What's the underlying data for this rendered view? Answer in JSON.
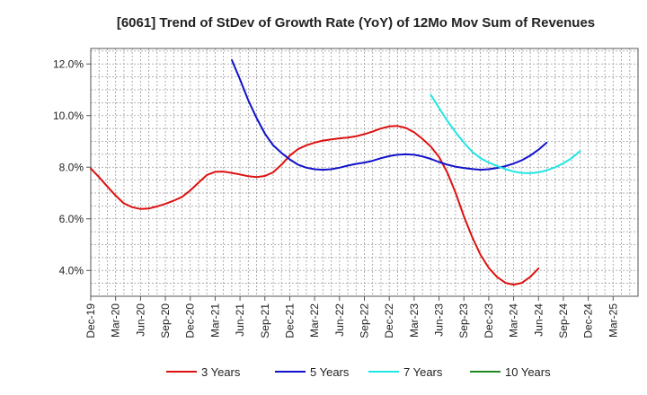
{
  "chart_data": {
    "type": "line",
    "title": "[6061]  Trend of StDev of Growth Rate (YoY) of 12Mo Mov Sum of Revenues",
    "xlabel": "",
    "ylabel": "",
    "ylim": [
      3.0,
      12.6
    ],
    "y_ticks": [
      {
        "value": 4.0,
        "label": "4.0%"
      },
      {
        "value": 6.0,
        "label": "6.0%"
      },
      {
        "value": 8.0,
        "label": "8.0%"
      },
      {
        "value": 10.0,
        "label": "10.0%"
      },
      {
        "value": 12.0,
        "label": "12.0%"
      }
    ],
    "x_range": [
      0,
      22
    ],
    "x_ticks": [
      {
        "index": 0,
        "label": "Dec-19"
      },
      {
        "index": 1,
        "label": "Mar-20"
      },
      {
        "index": 2,
        "label": "Jun-20"
      },
      {
        "index": 3,
        "label": "Sep-20"
      },
      {
        "index": 4,
        "label": "Dec-20"
      },
      {
        "index": 5,
        "label": "Mar-21"
      },
      {
        "index": 6,
        "label": "Jun-21"
      },
      {
        "index": 7,
        "label": "Sep-21"
      },
      {
        "index": 8,
        "label": "Dec-21"
      },
      {
        "index": 9,
        "label": "Mar-22"
      },
      {
        "index": 10,
        "label": "Jun-22"
      },
      {
        "index": 11,
        "label": "Sep-22"
      },
      {
        "index": 12,
        "label": "Dec-22"
      },
      {
        "index": 13,
        "label": "Mar-23"
      },
      {
        "index": 14,
        "label": "Jun-23"
      },
      {
        "index": 15,
        "label": "Sep-23"
      },
      {
        "index": 16,
        "label": "Dec-23"
      },
      {
        "index": 17,
        "label": "Mar-24"
      },
      {
        "index": 18,
        "label": "Jun-24"
      },
      {
        "index": 19,
        "label": "Sep-24"
      },
      {
        "index": 20,
        "label": "Dec-24"
      },
      {
        "index": 21,
        "label": "Mar-25"
      }
    ],
    "grid": true,
    "legend_position": "bottom",
    "series": [
      {
        "name": "3 Years",
        "color": "#dd1111",
        "points": [
          [
            0,
            7.95
          ],
          [
            0.33,
            7.62
          ],
          [
            0.67,
            7.25
          ],
          [
            1,
            6.9
          ],
          [
            1.33,
            6.6
          ],
          [
            1.67,
            6.45
          ],
          [
            2,
            6.38
          ],
          [
            2.33,
            6.4
          ],
          [
            2.67,
            6.48
          ],
          [
            3,
            6.58
          ],
          [
            3.33,
            6.7
          ],
          [
            3.67,
            6.85
          ],
          [
            4,
            7.1
          ],
          [
            4.33,
            7.4
          ],
          [
            4.67,
            7.7
          ],
          [
            5,
            7.82
          ],
          [
            5.33,
            7.83
          ],
          [
            5.67,
            7.78
          ],
          [
            6,
            7.72
          ],
          [
            6.33,
            7.65
          ],
          [
            6.67,
            7.62
          ],
          [
            7,
            7.66
          ],
          [
            7.33,
            7.8
          ],
          [
            7.67,
            8.1
          ],
          [
            8,
            8.45
          ],
          [
            8.33,
            8.7
          ],
          [
            8.67,
            8.85
          ],
          [
            9,
            8.95
          ],
          [
            9.33,
            9.03
          ],
          [
            9.67,
            9.08
          ],
          [
            10,
            9.12
          ],
          [
            10.33,
            9.15
          ],
          [
            10.67,
            9.2
          ],
          [
            11,
            9.28
          ],
          [
            11.33,
            9.38
          ],
          [
            11.67,
            9.5
          ],
          [
            12,
            9.58
          ],
          [
            12.33,
            9.6
          ],
          [
            12.67,
            9.52
          ],
          [
            13,
            9.35
          ],
          [
            13.33,
            9.1
          ],
          [
            13.67,
            8.8
          ],
          [
            14,
            8.4
          ],
          [
            14.33,
            7.8
          ],
          [
            14.67,
            7.0
          ],
          [
            15,
            6.1
          ],
          [
            15.33,
            5.3
          ],
          [
            15.67,
            4.6
          ],
          [
            16,
            4.1
          ],
          [
            16.33,
            3.75
          ],
          [
            16.67,
            3.52
          ],
          [
            17,
            3.45
          ],
          [
            17.33,
            3.52
          ],
          [
            17.67,
            3.75
          ],
          [
            18,
            4.08
          ]
        ]
      },
      {
        "name": "5 Years",
        "color": "#1111cc",
        "points": [
          [
            5.67,
            12.15
          ],
          [
            6,
            11.4
          ],
          [
            6.33,
            10.6
          ],
          [
            6.67,
            9.9
          ],
          [
            7,
            9.3
          ],
          [
            7.33,
            8.85
          ],
          [
            7.67,
            8.55
          ],
          [
            8,
            8.3
          ],
          [
            8.33,
            8.1
          ],
          [
            8.67,
            7.98
          ],
          [
            9,
            7.92
          ],
          [
            9.33,
            7.9
          ],
          [
            9.67,
            7.92
          ],
          [
            10,
            7.98
          ],
          [
            10.33,
            8.06
          ],
          [
            10.67,
            8.13
          ],
          [
            11,
            8.18
          ],
          [
            11.33,
            8.25
          ],
          [
            11.67,
            8.35
          ],
          [
            12,
            8.43
          ],
          [
            12.33,
            8.48
          ],
          [
            12.67,
            8.5
          ],
          [
            13,
            8.48
          ],
          [
            13.33,
            8.42
          ],
          [
            13.67,
            8.32
          ],
          [
            14,
            8.2
          ],
          [
            14.33,
            8.1
          ],
          [
            14.67,
            8.02
          ],
          [
            15,
            7.97
          ],
          [
            15.33,
            7.93
          ],
          [
            15.67,
            7.9
          ],
          [
            16,
            7.92
          ],
          [
            16.33,
            7.97
          ],
          [
            16.67,
            8.04
          ],
          [
            17,
            8.14
          ],
          [
            17.33,
            8.27
          ],
          [
            17.67,
            8.45
          ],
          [
            18,
            8.68
          ],
          [
            18.33,
            8.95
          ]
        ]
      },
      {
        "name": "7 Years",
        "color": "#22e5e5",
        "points": [
          [
            13.67,
            10.8
          ],
          [
            14,
            10.3
          ],
          [
            14.33,
            9.8
          ],
          [
            14.67,
            9.35
          ],
          [
            15,
            8.95
          ],
          [
            15.33,
            8.6
          ],
          [
            15.67,
            8.35
          ],
          [
            16,
            8.18
          ],
          [
            16.33,
            8.05
          ],
          [
            16.67,
            7.92
          ],
          [
            17,
            7.83
          ],
          [
            17.33,
            7.78
          ],
          [
            17.67,
            7.77
          ],
          [
            18,
            7.8
          ],
          [
            18.33,
            7.88
          ],
          [
            18.67,
            8.0
          ],
          [
            19,
            8.15
          ],
          [
            19.33,
            8.35
          ],
          [
            19.67,
            8.62
          ]
        ]
      },
      {
        "name": "10 Years",
        "color": "#228822",
        "points": []
      }
    ]
  }
}
